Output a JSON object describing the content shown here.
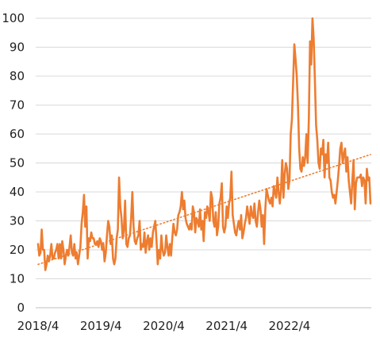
{
  "chart_data": {
    "type": "line",
    "title": "",
    "xlabel": "",
    "ylabel": "",
    "ylim": [
      0,
      100
    ],
    "yticks": [
      0,
      10,
      20,
      30,
      40,
      50,
      60,
      70,
      80,
      90,
      100
    ],
    "xticks": [
      "2018/4",
      "2019/4",
      "2020/4",
      "2021/4",
      "2022/4"
    ],
    "grid": true,
    "legend": "none",
    "colors": {
      "series": "#ED7D31",
      "trend": "#ED7D31"
    },
    "x_unit": "weeks from 2018/4",
    "series": [
      {
        "values": [
          22,
          18,
          19,
          27,
          20,
          20,
          13,
          15,
          18,
          16,
          18,
          22,
          17,
          17,
          19,
          20,
          22,
          17,
          22,
          17,
          23,
          20,
          15,
          18,
          20,
          18,
          21,
          25,
          19,
          18,
          22,
          17,
          19,
          15,
          18,
          21,
          29,
          33,
          39,
          28,
          35,
          17,
          24,
          23,
          26,
          24,
          24,
          22,
          22,
          23,
          21,
          24,
          23,
          20,
          22,
          16,
          19,
          25,
          30,
          28,
          22,
          25,
          17,
          15,
          17,
          24,
          27,
          45,
          35,
          31,
          24,
          27,
          37,
          22,
          21,
          24,
          25,
          31,
          40,
          28,
          23,
          22,
          24,
          25,
          30,
          20,
          22,
          21,
          26,
          19,
          23,
          25,
          20,
          24,
          21,
          26,
          28,
          30,
          23,
          15,
          20,
          17,
          25,
          20,
          18,
          19,
          25,
          21,
          18,
          22,
          18,
          24,
          29,
          26,
          25,
          27,
          32,
          33,
          35,
          40,
          34,
          37,
          31,
          29,
          28,
          27,
          29,
          27,
          35,
          33,
          26,
          31,
          30,
          28,
          34,
          27,
          30,
          23,
          33,
          31,
          35,
          33,
          30,
          40,
          38,
          30,
          28,
          33,
          25,
          28,
          36,
          38,
          43,
          28,
          26,
          28,
          35,
          31,
          36,
          38,
          47,
          32,
          29,
          26,
          25,
          28,
          30,
          27,
          32,
          24,
          26,
          29,
          31,
          35,
          32,
          29,
          35,
          32,
          31,
          36,
          30,
          28,
          33,
          37,
          34,
          28,
          32,
          22,
          34,
          41,
          39,
          37,
          36,
          38,
          35,
          42,
          40,
          38,
          45,
          40,
          36,
          41,
          51,
          38,
          46,
          50,
          48,
          41,
          44,
          60,
          65,
          78,
          91,
          86,
          80,
          70,
          55,
          48,
          47,
          52,
          49,
          52,
          60,
          50,
          65,
          92,
          84,
          100,
          93,
          79,
          63,
          58,
          50,
          48,
          55,
          53,
          58,
          45,
          53,
          50,
          57,
          45,
          44,
          40,
          38,
          39,
          36,
          40,
          44,
          49,
          55,
          57,
          50,
          53,
          55,
          47,
          52,
          44,
          40,
          36,
          44,
          51,
          34,
          43,
          45,
          45,
          45,
          46,
          42,
          45,
          44,
          36,
          48,
          44,
          45,
          36
        ]
      }
    ]
  }
}
